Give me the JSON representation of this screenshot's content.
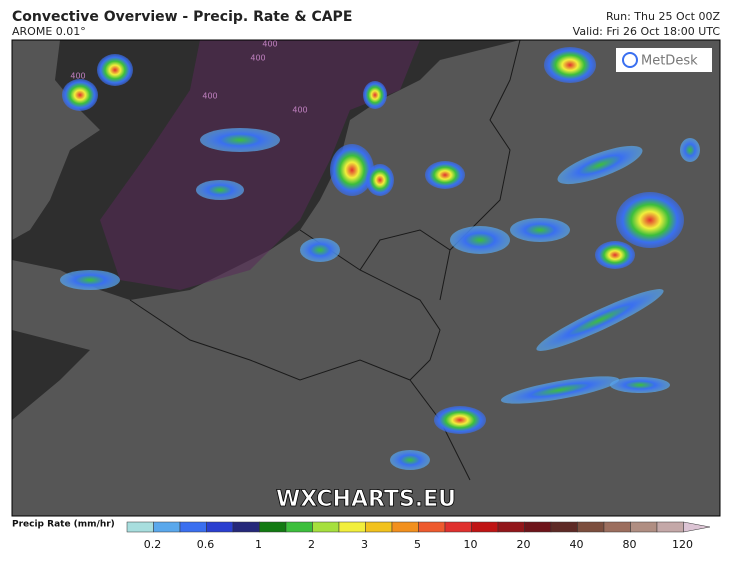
{
  "header": {
    "title": "Convective Overview - Precip. Rate & CAPE",
    "model": "AROME 0.01°",
    "run": "Run: Thu 25 Oct 00Z",
    "valid": "Valid: Fri 26 Oct 18:00 UTC"
  },
  "logo": "MetDesk",
  "watermark": "WXCHARTS.EU",
  "contour_labels": [
    400,
    400,
    400,
    400,
    400
  ],
  "legend": {
    "label": "Precip Rate (mm/hr)",
    "ticks": [
      0.2,
      0.6,
      1,
      2,
      3,
      5,
      10,
      20,
      40,
      80,
      120
    ],
    "colors": [
      "#a8dede",
      "#5aa8ec",
      "#3a6ff0",
      "#2a3fd0",
      "#25287a",
      "#127a12",
      "#3cbf3c",
      "#a6e03e",
      "#f2ef3c",
      "#f2c21e",
      "#f2901e",
      "#ee5a2e",
      "#e0302e",
      "#c01414",
      "#92161a",
      "#6e141a",
      "#5e2a26",
      "#7c4e3e",
      "#9c6e5e",
      "#b08e82",
      "#c4a8a8",
      "#dcc4d4"
    ]
  }
}
